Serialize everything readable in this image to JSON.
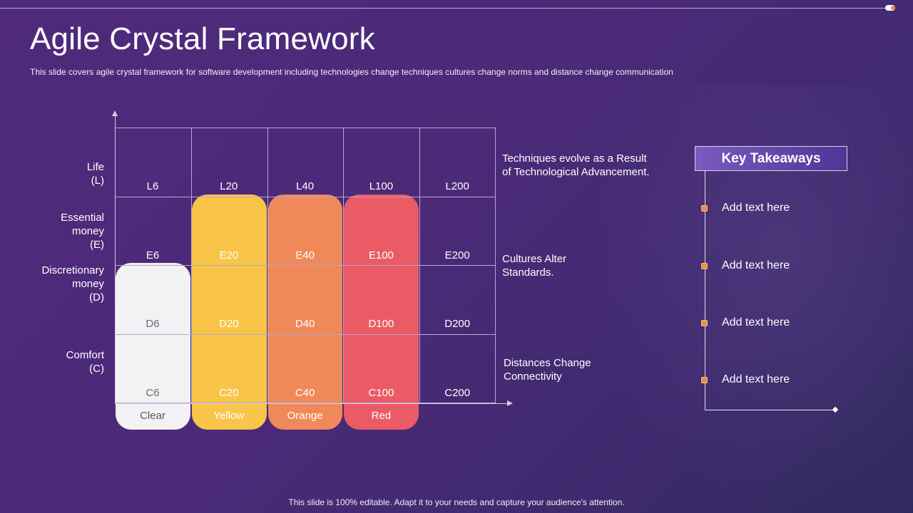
{
  "slide": {
    "title": "Agile Crystal Framework",
    "subtitle": "This slide covers  agile crystal framework  for software development  including technologies change techniques cultures change norms and distance change communication",
    "footer": "This slide is 100% editable. Adapt it to your needs and capture your audience's attention."
  },
  "matrix": {
    "rows": [
      {
        "label_lines": [
          "Life",
          "(L)"
        ],
        "cells": [
          "L6",
          "L20",
          "L40",
          "L100",
          "L200"
        ]
      },
      {
        "label_lines": [
          "Essential",
          "money",
          "(E)"
        ],
        "cells": [
          "E6",
          "E20",
          "E40",
          "E100",
          "E200"
        ]
      },
      {
        "label_lines": [
          "Discretionary",
          "money",
          "(D)"
        ],
        "cells": [
          "D6",
          "D20",
          "D40",
          "D100",
          "D200"
        ]
      },
      {
        "label_lines": [
          "Comfort",
          "(C)"
        ],
        "cells": [
          "C6",
          "C20",
          "C40",
          "C100",
          "C200"
        ]
      }
    ],
    "bands": [
      {
        "label": "Clear",
        "color": "#f2f1f3",
        "text_color": "#5a5a5a",
        "cell_text_color": "#6b6b6b",
        "from_row": 2
      },
      {
        "label": "Yellow",
        "color": "#f8c549",
        "text_color": "#ffffff",
        "cell_text_color": "#ffffff",
        "from_row": 1
      },
      {
        "label": "Orange",
        "color": "#f0895a",
        "text_color": "#ffffff",
        "cell_text_color": "#ffffff",
        "from_row": 1
      },
      {
        "label": "Red",
        "color": "#eb5b66",
        "text_color": "#ffffff",
        "cell_text_color": "#ffffff",
        "from_row": 1
      }
    ],
    "notes": [
      "Techniques evolve  as a Result\nof Technological Advancement.",
      "Cultures Alter\nStandards.",
      "Distances Change\nConnectivity"
    ]
  },
  "key_takeaways": {
    "heading": "Key Takeaways",
    "items": [
      "Add text here",
      "Add text here",
      "Add text here",
      "Add text here"
    ],
    "accent_color": "#e8913f"
  }
}
